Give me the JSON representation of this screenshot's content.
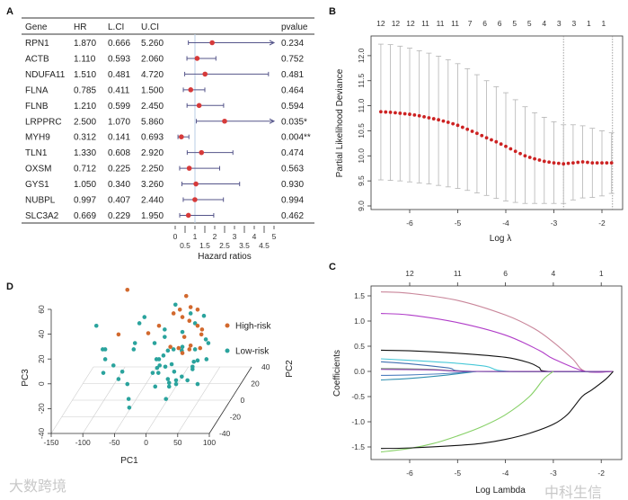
{
  "panel_labels": {
    "a": "A",
    "b": "B",
    "c": "C",
    "d": "D"
  },
  "watermarks": {
    "d": "大数跨境",
    "c": "中科生信"
  },
  "chart_data": [
    {
      "panel": "A",
      "type": "table",
      "subtype": "forest",
      "columns": [
        "Gene",
        "HR",
        "L.CI",
        "U.CI",
        "pvalue"
      ],
      "rows": [
        {
          "gene": "RPN1",
          "hr": "1.870",
          "lci": "0.666",
          "uci": "5.260",
          "pvalue": "0.234"
        },
        {
          "gene": "ACTB",
          "hr": "1.110",
          "lci": "0.593",
          "uci": "2.060",
          "pvalue": "0.752"
        },
        {
          "gene": "NDUFA11",
          "hr": "1.510",
          "lci": "0.481",
          "uci": "4.720",
          "pvalue": "0.481"
        },
        {
          "gene": "FLNA",
          "hr": "0.785",
          "lci": "0.411",
          "uci": "1.500",
          "pvalue": "0.464"
        },
        {
          "gene": "FLNB",
          "hr": "1.210",
          "lci": "0.599",
          "uci": "2.450",
          "pvalue": "0.594"
        },
        {
          "gene": "LRPPRC",
          "hr": "2.500",
          "lci": "1.070",
          "uci": "5.860",
          "pvalue": "0.035*"
        },
        {
          "gene": "MYH9",
          "hr": "0.312",
          "lci": "0.141",
          "uci": "0.693",
          "pvalue": "0.004**"
        },
        {
          "gene": "TLN1",
          "hr": "1.330",
          "lci": "0.608",
          "uci": "2.920",
          "pvalue": "0.474"
        },
        {
          "gene": "OXSM",
          "hr": "0.712",
          "lci": "0.225",
          "uci": "2.250",
          "pvalue": "0.563"
        },
        {
          "gene": "GYS1",
          "hr": "1.050",
          "lci": "0.340",
          "uci": "3.260",
          "pvalue": "0.930"
        },
        {
          "gene": "NUBPL",
          "hr": "0.997",
          "lci": "0.407",
          "uci": "2.440",
          "pvalue": "0.994"
        },
        {
          "gene": "SLC3A2",
          "hr": "0.669",
          "lci": "0.229",
          "uci": "1.950",
          "pvalue": "0.462"
        }
      ],
      "xlabel": "Hazard ratios",
      "xlim": [
        0,
        5
      ],
      "xticks": [
        "0",
        "0.5",
        "1",
        "1.5",
        "2",
        "2.5",
        "3",
        "3.5",
        "4",
        "4.5",
        "5"
      ],
      "reference_line": 1,
      "colors": {
        "point": "#d63a3a",
        "ci": "#55558a",
        "ref": "#b8cde4"
      }
    },
    {
      "panel": "B",
      "type": "scatter",
      "subtype": "cv-error-bars",
      "xlabel": "Log λ",
      "ylabel": "Partial Likelihood Deviance",
      "xlim": [
        -6.8,
        -1.6
      ],
      "ylim": [
        8.95,
        12.35
      ],
      "xticks": [
        "-6",
        "-5",
        "-4",
        "-3",
        "-2"
      ],
      "yticks": [
        "9.0",
        "9.5",
        "10.0",
        "10.5",
        "11.0",
        "11.5",
        "12.0"
      ],
      "top_labels": [
        "12",
        "12",
        "12",
        "11",
        "11",
        "11",
        "7",
        "6",
        "6",
        "5",
        "5",
        "4",
        "3",
        "3",
        "1",
        "1"
      ],
      "top_label_start": -6.6,
      "top_label_step": 0.309,
      "vlines": [
        -2.8,
        -1.78
      ],
      "log_lambda": [
        -6.6,
        -6.4,
        -6.2,
        -6.0,
        -5.8,
        -5.6,
        -5.4,
        -5.2,
        -5.0,
        -4.8,
        -4.6,
        -4.4,
        -4.2,
        -4.0,
        -3.8,
        -3.6,
        -3.4,
        -3.2,
        -3.0,
        -2.8,
        -2.6,
        -2.4,
        -2.2,
        -2.0,
        -1.8
      ],
      "mean": [
        10.88,
        10.87,
        10.85,
        10.83,
        10.8,
        10.76,
        10.72,
        10.67,
        10.61,
        10.53,
        10.45,
        10.36,
        10.28,
        10.19,
        10.09,
        10.0,
        9.94,
        9.89,
        9.86,
        9.84,
        9.86,
        9.88,
        9.86,
        9.86,
        9.86
      ],
      "upper": [
        12.23,
        12.22,
        12.19,
        12.15,
        12.1,
        12.05,
        11.99,
        11.92,
        11.84,
        11.74,
        11.62,
        11.5,
        11.38,
        11.26,
        11.12,
        10.98,
        10.86,
        10.77,
        10.68,
        10.62,
        10.62,
        10.6,
        10.55,
        10.5,
        10.46
      ],
      "lower": [
        9.52,
        9.51,
        9.5,
        9.48,
        9.46,
        9.44,
        9.41,
        9.38,
        9.35,
        9.31,
        9.26,
        9.21,
        9.15,
        9.1,
        9.07,
        9.05,
        9.05,
        9.05,
        9.05,
        9.05,
        9.12,
        9.16,
        9.17,
        9.2,
        9.25
      ],
      "colors": {
        "point": "#cc2222",
        "bar": "#b4b4b4"
      }
    },
    {
      "panel": "C",
      "type": "line",
      "xlabel": "Log Lambda",
      "ylabel": "Coefficients",
      "xlim": [
        -6.8,
        -1.6
      ],
      "ylim": [
        -1.72,
        1.7
      ],
      "xticks": [
        "-6",
        "-5",
        "-4",
        "-3",
        "-2"
      ],
      "yticks": [
        "-1.5",
        "-1.0",
        "-0.5",
        "0.0",
        "0.5",
        "1.0",
        "1.5"
      ],
      "top_labels": [
        "12",
        "11",
        "6",
        "4",
        "1"
      ],
      "series": [
        {
          "color": "#c9869a",
          "points": [
            [
              -6.6,
              1.58
            ],
            [
              -6,
              1.55
            ],
            [
              -5,
              1.41
            ],
            [
              -4,
              1.12
            ],
            [
              -3.4,
              0.85
            ],
            [
              -3,
              0.58
            ],
            [
              -2.6,
              0.25
            ],
            [
              -2.33,
              0
            ],
            [
              -1.75,
              0
            ]
          ]
        },
        {
          "color": "#b03cc8",
          "points": [
            [
              -6.6,
              1.15
            ],
            [
              -6,
              1.12
            ],
            [
              -5,
              0.97
            ],
            [
              -4,
              0.72
            ],
            [
              -3.3,
              0.42
            ],
            [
              -3,
              0.25
            ],
            [
              -2.33,
              0
            ],
            [
              -1.75,
              0
            ]
          ]
        },
        {
          "color": "#111111",
          "points": [
            [
              -6.6,
              0.42
            ],
            [
              -6,
              0.41
            ],
            [
              -5,
              0.36
            ],
            [
              -4,
              0.28
            ],
            [
              -3.5,
              0.17
            ],
            [
              -3.3,
              0.08
            ],
            [
              -3.1,
              0
            ],
            [
              -1.75,
              0
            ]
          ]
        },
        {
          "color": "#48c8d8",
          "points": [
            [
              -6.6,
              0.25
            ],
            [
              -6,
              0.22
            ],
            [
              -5,
              0.16
            ],
            [
              -4.4,
              0.1
            ],
            [
              -3.9,
              0
            ],
            [
              -1.75,
              0
            ]
          ]
        },
        {
          "color": "#4070b0",
          "points": [
            [
              -6.6,
              0.19
            ],
            [
              -6,
              0.15
            ],
            [
              -5.2,
              0.07
            ],
            [
              -4.7,
              0
            ],
            [
              -1.75,
              0
            ]
          ]
        },
        {
          "color": "#88a888",
          "points": [
            [
              -6.6,
              0.06
            ],
            [
              -5.5,
              0.04
            ],
            [
              -4.7,
              0
            ],
            [
              -1.75,
              0
            ]
          ]
        },
        {
          "color": "#5080c0",
          "points": [
            [
              -6.6,
              -0.08
            ],
            [
              -6,
              -0.07
            ],
            [
              -5.2,
              -0.04
            ],
            [
              -4.6,
              0
            ]
          ]
        },
        {
          "color": "#3090b0",
          "points": [
            [
              -6.6,
              -0.17
            ],
            [
              -6,
              -0.14
            ],
            [
              -5.2,
              -0.07
            ],
            [
              -4.6,
              0
            ]
          ]
        },
        {
          "color": "#8a3aa8",
          "points": [
            [
              -6.6,
              0.04
            ],
            [
              -5.5,
              0.03
            ],
            [
              -4.7,
              0
            ],
            [
              -1.75,
              0
            ]
          ]
        },
        {
          "color": "#86d066",
          "points": [
            [
              -6.6,
              -1.6
            ],
            [
              -6,
              -1.53
            ],
            [
              -5.5,
              -1.43
            ],
            [
              -5,
              -1.28
            ],
            [
              -4.5,
              -1.1
            ],
            [
              -4,
              -0.86
            ],
            [
              -3.5,
              -0.5
            ],
            [
              -3.2,
              -0.15
            ],
            [
              -3.0,
              0
            ]
          ]
        },
        {
          "color": "#111111",
          "points": [
            [
              -6.6,
              -1.53
            ],
            [
              -6,
              -1.52
            ],
            [
              -5,
              -1.47
            ],
            [
              -4.5,
              -1.43
            ],
            [
              -4,
              -1.35
            ],
            [
              -3.5,
              -1.23
            ],
            [
              -3,
              -1.05
            ],
            [
              -2.7,
              -0.85
            ],
            [
              -2.4,
              -0.5
            ],
            [
              -2.2,
              -0.37
            ],
            [
              -1.9,
              -0.15
            ],
            [
              -1.75,
              0
            ]
          ]
        }
      ]
    },
    {
      "panel": "D",
      "type": "scatter",
      "subtype": "3d-pca",
      "xlabel": "PC1",
      "ylabel": "PC3",
      "zlabel": "PC2",
      "xticks": [
        "-150",
        "-100",
        "-50",
        "0",
        "50",
        "100"
      ],
      "yticks": [
        "-40",
        "-20",
        "0",
        "20",
        "40",
        "60"
      ],
      "zticks": [
        "-40",
        "-20",
        "0",
        "20",
        "40"
      ],
      "legend": [
        {
          "label": "High-risk",
          "color": "#d2692e"
        },
        {
          "label": "Low-risk",
          "color": "#2aa39d"
        }
      ],
      "legend_position": "right",
      "high_risk": [
        [
          -63,
          49
        ],
        [
          30,
          44
        ],
        [
          20,
          33
        ],
        [
          37,
          35
        ],
        [
          48,
          33
        ],
        [
          10,
          30
        ],
        [
          24,
          27
        ],
        [
          35,
          24
        ],
        [
          48,
          20
        ],
        [
          -13,
          20
        ],
        [
          55,
          17
        ],
        [
          -77,
          13
        ],
        [
          -30,
          14
        ],
        [
          27,
          11
        ],
        [
          54,
          13
        ],
        [
          5,
          3
        ],
        [
          18,
          2
        ],
        [
          37,
          4
        ],
        [
          52,
          2
        ],
        [
          24,
          -2
        ],
        [
          35,
          1
        ]
      ],
      "low_risk": [
        [
          -112,
          20
        ],
        [
          -36,
          27
        ],
        [
          -44,
          22
        ],
        [
          13,
          37
        ],
        [
          37,
          30
        ],
        [
          58,
          28
        ],
        [
          44,
          22
        ],
        [
          -4,
          17
        ],
        [
          -4,
          11
        ],
        [
          24,
          15
        ],
        [
          61,
          9
        ],
        [
          65,
          6
        ],
        [
          -51,
          6
        ],
        [
          -20,
          6
        ],
        [
          -102,
          1
        ],
        [
          -98,
          1
        ],
        [
          -53,
          1
        ],
        [
          10,
          1
        ],
        [
          24,
          3
        ],
        [
          44,
          1
        ],
        [
          -6,
          -4
        ],
        [
          23,
          0
        ],
        [
          -98,
          -7
        ],
        [
          -17,
          -7
        ],
        [
          -13,
          -7
        ],
        [
          1,
          0
        ],
        [
          42,
          -9
        ],
        [
          48,
          -8
        ],
        [
          62,
          -7
        ],
        [
          -85,
          -12
        ],
        [
          -16,
          -14
        ],
        [
          -12,
          -12
        ],
        [
          7,
          -11
        ],
        [
          40,
          -13
        ],
        [
          -3,
          -13
        ],
        [
          -101,
          -18
        ],
        [
          -71,
          -17
        ],
        [
          -23,
          -18
        ],
        [
          -14,
          -18
        ],
        [
          11,
          -17
        ],
        [
          23,
          -21
        ],
        [
          40,
          -15
        ],
        [
          -77,
          -23
        ],
        [
          1,
          -23
        ],
        [
          14,
          -24
        ],
        [
          32,
          -24
        ],
        [
          -63,
          -27
        ],
        [
          -19,
          -29
        ],
        [
          3,
          -26
        ],
        [
          14,
          -27
        ],
        [
          48,
          -27
        ],
        [
          3,
          -29
        ],
        [
          -61,
          -39
        ],
        [
          -2,
          -39
        ],
        [
          -60,
          -46
        ]
      ]
    }
  ]
}
